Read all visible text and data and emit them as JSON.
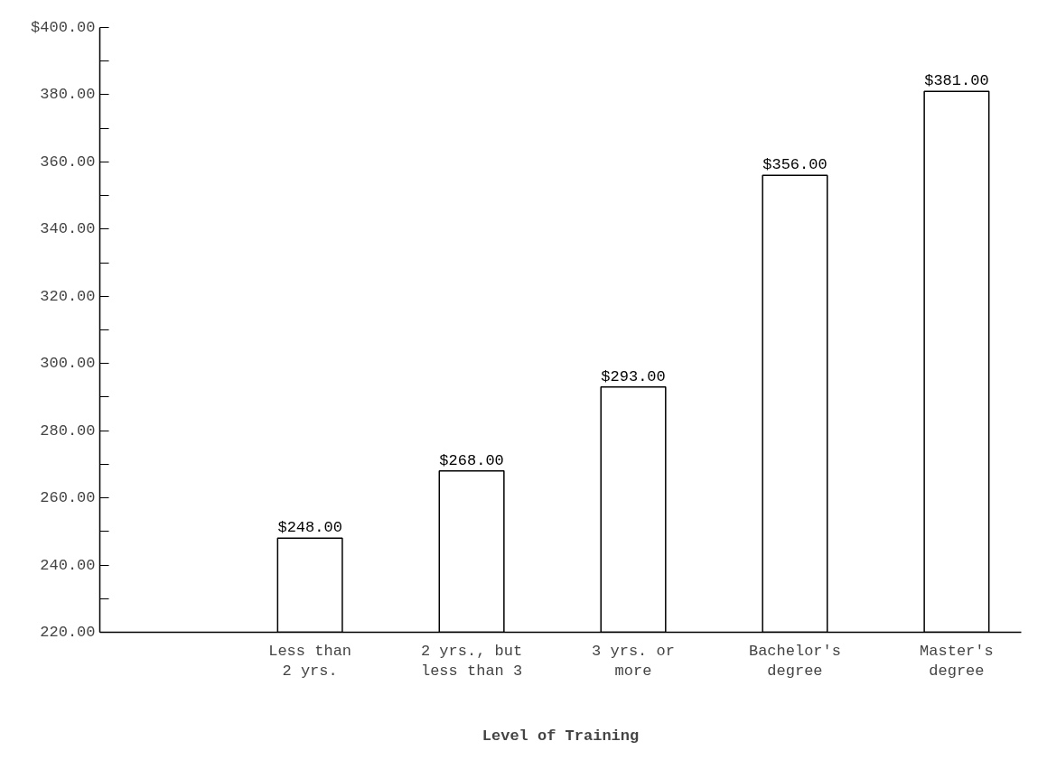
{
  "chart_data": {
    "type": "bar",
    "xlabel": "Level of Training",
    "categories": [
      "Less than\n2 yrs.",
      "2 yrs., but\nless than 3",
      "3 yrs. or\nmore",
      "Bachelor's\ndegree",
      "Master's\ndegree"
    ],
    "values": [
      248,
      268,
      293,
      356,
      381
    ],
    "value_labels": [
      "$248.00",
      "$268.00",
      "$293.00",
      "$356.00",
      "$381.00"
    ],
    "color": "#ffffff",
    "ylim": [
      220,
      400
    ],
    "yticks": [
      {
        "value": 220,
        "label": "220.00"
      },
      {
        "value": 230,
        "label": null
      },
      {
        "value": 240,
        "label": "240.00"
      },
      {
        "value": 250,
        "label": null
      },
      {
        "value": 260,
        "label": "260.00"
      },
      {
        "value": 270,
        "label": null
      },
      {
        "value": 280,
        "label": "280.00"
      },
      {
        "value": 290,
        "label": null
      },
      {
        "value": 300,
        "label": "300.00"
      },
      {
        "value": 310,
        "label": null
      },
      {
        "value": 320,
        "label": "320.00"
      },
      {
        "value": 330,
        "label": null
      },
      {
        "value": 340,
        "label": "340.00"
      },
      {
        "value": 350,
        "label": null
      },
      {
        "value": 360,
        "label": "360.00"
      },
      {
        "value": 370,
        "label": null
      },
      {
        "value": 380,
        "label": "380.00"
      },
      {
        "value": 390,
        "label": null
      },
      {
        "value": 400,
        "label": "$400.00"
      }
    ],
    "grid": false
  }
}
